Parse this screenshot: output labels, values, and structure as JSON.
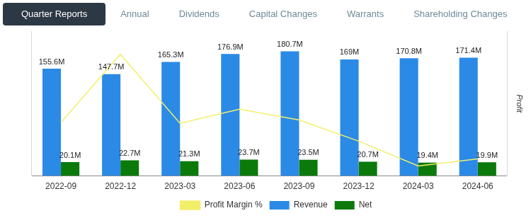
{
  "tabs": {
    "items": [
      "Quarter Reports",
      "Annual",
      "Dividends",
      "Capital Changes",
      "Warrants",
      "Shareholding Changes"
    ],
    "active": "Quarter Reports"
  },
  "chart_data": {
    "type": "bar",
    "categories": [
      "2022-09",
      "2022-12",
      "2023-03",
      "2023-06",
      "2023-09",
      "2023-12",
      "2024-03",
      "2024-06"
    ],
    "series": [
      {
        "name": "Revenue",
        "type": "bar",
        "color": "#2b8ae6",
        "values": [
          155.6,
          147.7,
          165.3,
          176.9,
          180.7,
          169,
          170.8,
          171.4
        ],
        "value_labels": [
          "155.6M",
          "147.7M",
          "165.3M",
          "176.9M",
          "180.7M",
          "169M",
          "170.8M",
          "171.4M"
        ]
      },
      {
        "name": "Net",
        "type": "bar",
        "color": "#0b7a0b",
        "values": [
          20.1,
          22.7,
          21.3,
          23.7,
          23.5,
          20.7,
          19.4,
          19.9
        ],
        "value_labels": [
          "20.1M",
          "22.7M",
          "21.3M",
          "23.7M",
          "23.5M",
          "20.7M",
          "19.4M",
          "19.9M"
        ]
      },
      {
        "name": "Profit Margin %",
        "type": "line",
        "axis": "y2",
        "color": "#f3ee6a",
        "marker": "none",
        "values": [
          12.92,
          15.37,
          12.89,
          13.4,
          13.01,
          12.25,
          11.36,
          11.61
        ]
      }
    ],
    "ylim": [
      0,
      210
    ],
    "yticks": [],
    "y2lim": [
      11,
      16.2
    ],
    "y2ticks": [],
    "y2label": "Profit",
    "legend": "bottom",
    "data_labels": true,
    "tick_labels": "x",
    "grid": false
  }
}
